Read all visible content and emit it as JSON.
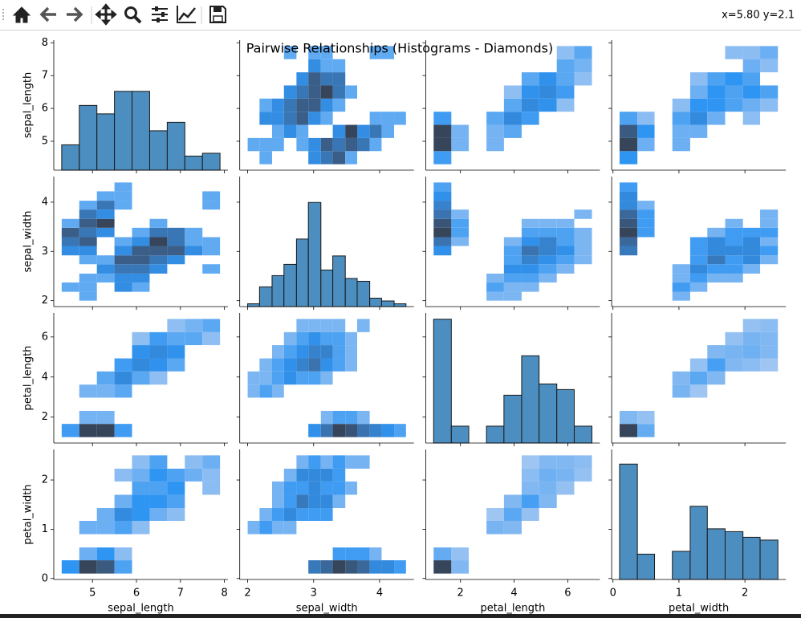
{
  "toolbar": {
    "coordinates": "x=5.80 y=2.1"
  },
  "chart_data": {
    "type": "pairgrid",
    "title": "Pairwise Relationships (Histograms - Diamonds)",
    "color": "#4d8ec0",
    "cmap": [
      "#a9c9f2",
      "#2f95f2",
      "#3c6ea6",
      "#37455a"
    ],
    "variables": [
      {
        "name": "sepal_length",
        "lim": [
          4.12,
          8.08
        ],
        "ticks": [
          5,
          6,
          7,
          8
        ],
        "bins": [
          4.3,
          4.7,
          5.1,
          5.5,
          5.9,
          6.3,
          6.7,
          7.1,
          7.5,
          7.9
        ],
        "counts": [
          9,
          23,
          20,
          28,
          28,
          14,
          17,
          5,
          6
        ]
      },
      {
        "name": "sepal_width",
        "lim": [
          1.88,
          4.52
        ],
        "ticks": [
          2,
          3,
          4
        ],
        "bins": [
          2,
          2.18,
          2.37,
          2.55,
          2.74,
          2.92,
          3.11,
          3.29,
          3.48,
          3.66,
          3.85,
          4.03,
          4.22,
          4.4
        ],
        "counts": [
          1,
          7,
          11,
          15,
          24,
          37,
          13,
          18,
          10,
          9,
          3,
          2,
          1
        ]
      },
      {
        "name": "petal_length",
        "lim": [
          0.705,
          7.195
        ],
        "ticks": [
          2,
          4,
          6
        ],
        "bins": [
          1,
          1.66,
          2.31,
          2.97,
          3.62,
          4.28,
          4.93,
          5.59,
          6.24,
          6.9
        ],
        "counts": [
          44,
          6,
          0,
          6,
          17,
          31,
          21,
          19,
          6
        ]
      },
      {
        "name": "petal_width",
        "lim": [
          -0.02,
          2.62
        ],
        "ticks": [
          0,
          1,
          2
        ],
        "bins": [
          0.1,
          0.37,
          0.63,
          0.9,
          1.17,
          1.43,
          1.7,
          1.97,
          2.23,
          2.5
        ],
        "counts": [
          41,
          9,
          0,
          10,
          26,
          18,
          17,
          15,
          14
        ]
      }
    ],
    "pairs": [
      {
        "counts": [
          [
            0,
            1,
            0,
            0,
            0,
            2,
            3,
            4,
            1,
            0,
            0,
            0,
            0
          ],
          [
            1,
            1,
            1,
            0,
            1,
            2,
            4,
            3,
            4,
            3,
            1,
            0,
            0
          ],
          [
            0,
            0,
            1,
            2,
            1,
            0,
            0,
            2,
            5,
            2,
            3,
            1,
            0
          ],
          [
            0,
            2,
            2,
            3,
            4,
            2,
            1,
            0,
            0,
            0,
            1,
            1,
            1
          ],
          [
            0,
            1,
            2,
            3,
            4,
            4,
            2,
            1,
            0,
            0,
            0,
            0,
            0
          ],
          [
            0,
            0,
            0,
            2,
            3,
            4,
            5,
            3,
            1,
            0,
            0,
            0,
            0
          ],
          [
            0,
            0,
            0,
            0,
            2,
            4,
            3,
            3,
            0,
            0,
            0,
            0,
            0
          ],
          [
            0,
            0,
            0,
            0,
            0,
            2,
            1,
            1,
            0,
            0,
            0,
            0,
            0
          ],
          [
            0,
            0,
            0,
            1,
            0,
            1,
            1,
            0,
            0,
            0,
            1,
            1,
            0
          ]
        ]
      },
      {
        "counts": [
          [
            4,
            0,
            0,
            0,
            0,
            0,
            0,
            0,
            0
          ],
          [
            14,
            2,
            0,
            2,
            0,
            0,
            0,
            0,
            0
          ],
          [
            14,
            2,
            0,
            2,
            3,
            0,
            0,
            0,
            0
          ],
          [
            4,
            0,
            0,
            3,
            6,
            4,
            0,
            0,
            0
          ],
          [
            0,
            0,
            0,
            0,
            3,
            6,
            5,
            1,
            0
          ],
          [
            0,
            0,
            0,
            0,
            1,
            5,
            6,
            4,
            0
          ],
          [
            0,
            0,
            0,
            0,
            0,
            3,
            5,
            3,
            1
          ],
          [
            0,
            0,
            0,
            0,
            0,
            0,
            0,
            3,
            2
          ],
          [
            0,
            0,
            0,
            0,
            0,
            0,
            0,
            1,
            3
          ]
        ]
      },
      {
        "counts": [
          [
            4,
            0,
            0,
            0,
            0,
            0,
            0,
            0,
            0
          ],
          [
            12,
            2,
            0,
            2,
            0,
            0,
            0,
            0,
            0
          ],
          [
            10,
            4,
            0,
            2,
            2,
            0,
            0,
            0,
            0
          ],
          [
            3,
            1,
            0,
            3,
            5,
            2,
            0,
            1,
            0
          ],
          [
            0,
            0,
            0,
            1,
            4,
            4,
            3,
            2,
            1
          ],
          [
            0,
            0,
            0,
            0,
            2,
            4,
            3,
            4,
            3
          ],
          [
            0,
            0,
            0,
            0,
            1,
            3,
            4,
            3,
            0
          ],
          [
            0,
            0,
            0,
            0,
            0,
            0,
            0,
            2,
            1
          ],
          [
            0,
            0,
            0,
            0,
            0,
            0,
            1,
            1,
            2
          ]
        ]
      },
      {
        "counts": [
          [
            0,
            0,
            0,
            1,
            1,
            0,
            0,
            0,
            0
          ],
          [
            0,
            0,
            0,
            2,
            1,
            1,
            0,
            0,
            0
          ],
          [
            0,
            0,
            0,
            1,
            2,
            2,
            1,
            0,
            0
          ],
          [
            0,
            0,
            0,
            0,
            3,
            3,
            2,
            1,
            0
          ],
          [
            0,
            0,
            0,
            0,
            2,
            4,
            3,
            2,
            1
          ],
          [
            3,
            0,
            0,
            0,
            2,
            5,
            4,
            3,
            1
          ],
          [
            5,
            1,
            0,
            0,
            1,
            3,
            4,
            2,
            1
          ],
          [
            8,
            2,
            0,
            0,
            0,
            2,
            2,
            2,
            1
          ],
          [
            7,
            2,
            0,
            0,
            0,
            1,
            1,
            1,
            0
          ],
          [
            5,
            1,
            0,
            0,
            0,
            0,
            0,
            0,
            1
          ],
          [
            4,
            0,
            0,
            0,
            0,
            0,
            0,
            0,
            0
          ],
          [
            3,
            0,
            0,
            0,
            0,
            0,
            0,
            0,
            0
          ],
          [
            2,
            0,
            0,
            0,
            0,
            0,
            0,
            0,
            0
          ]
        ]
      },
      {
        "counts": [
          [
            0,
            0,
            0,
            1,
            0,
            0,
            0,
            0,
            0
          ],
          [
            0,
            0,
            0,
            2,
            1,
            0,
            0,
            0,
            0
          ],
          [
            0,
            0,
            0,
            1,
            2,
            1,
            1,
            0,
            0
          ],
          [
            0,
            0,
            0,
            1,
            3,
            2,
            2,
            1,
            0
          ],
          [
            0,
            0,
            0,
            0,
            2,
            4,
            2,
            3,
            1
          ],
          [
            4,
            0,
            0,
            0,
            2,
            3,
            3,
            3,
            2
          ],
          [
            5,
            0,
            0,
            0,
            2,
            3,
            2,
            3,
            1
          ],
          [
            7,
            2,
            0,
            0,
            0,
            1,
            2,
            2,
            2
          ],
          [
            6,
            2,
            0,
            0,
            0,
            0,
            1,
            0,
            1
          ],
          [
            5,
            2,
            0,
            0,
            0,
            0,
            0,
            0,
            1
          ],
          [
            3,
            1,
            0,
            0,
            0,
            0,
            0,
            0,
            0
          ],
          [
            3,
            0,
            0,
            0,
            0,
            0,
            0,
            0,
            0
          ],
          [
            2,
            0,
            0,
            0,
            0,
            0,
            0,
            0,
            0
          ]
        ]
      },
      {
        "counts": [
          [
            37,
            7,
            0,
            0,
            0,
            0,
            0,
            0,
            0
          ],
          [
            4,
            2,
            0,
            0,
            0,
            0,
            0,
            0,
            0
          ],
          [
            0,
            0,
            0,
            0,
            0,
            0,
            0,
            0,
            0
          ],
          [
            0,
            0,
            0,
            5,
            1,
            0,
            0,
            0,
            0
          ],
          [
            0,
            0,
            0,
            4,
            8,
            4,
            0,
            0,
            0
          ],
          [
            0,
            0,
            0,
            0,
            2,
            10,
            4,
            3,
            1
          ],
          [
            0,
            0,
            0,
            0,
            0,
            4,
            5,
            6,
            4
          ],
          [
            0,
            0,
            0,
            0,
            0,
            0,
            2,
            5,
            4
          ],
          [
            0,
            0,
            0,
            0,
            0,
            0,
            0,
            2,
            3
          ]
        ]
      }
    ]
  }
}
